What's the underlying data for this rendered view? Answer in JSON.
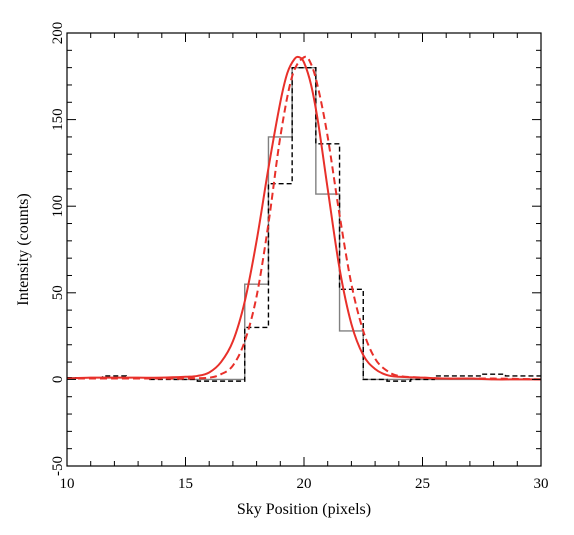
{
  "chart_data": {
    "type": "line",
    "title": "",
    "xlabel": "Sky Position (pixels)",
    "ylabel": "Intensity (counts)",
    "xlim": [
      10,
      30
    ],
    "ylim": [
      -50,
      200
    ],
    "xticks": [
      10,
      15,
      20,
      25,
      30
    ],
    "yticks": [
      -50,
      0,
      50,
      100,
      150,
      200
    ],
    "grid": false,
    "legend": "none",
    "series": [
      {
        "style": "step",
        "color": "#808080",
        "dash": "solid",
        "x": [
          10,
          11.5,
          12.5,
          13.5,
          14.5,
          15.5,
          16.5,
          17.5,
          18.5,
          19.5,
          20.5,
          21.5,
          22.5,
          23.5,
          24.5,
          25.5,
          26.5,
          27.5,
          28.5,
          29.5,
          30
        ],
        "y": [
          1,
          1,
          1,
          1,
          0,
          0,
          0,
          55,
          140,
          180,
          107,
          28,
          0,
          0,
          0,
          0,
          0,
          0,
          0,
          0,
          0
        ]
      },
      {
        "style": "step",
        "color": "#000000",
        "dash": "dashed",
        "x": [
          10,
          11.5,
          12.5,
          13.5,
          14.5,
          15.5,
          16.5,
          17.5,
          18.5,
          19.5,
          20.5,
          21.5,
          22.5,
          23.5,
          24.5,
          25.5,
          26.5,
          27.5,
          28.5,
          29.5,
          30
        ],
        "y": [
          1,
          2,
          1,
          0,
          0,
          -1,
          -1,
          30,
          113,
          180,
          136,
          52,
          0,
          -1,
          0,
          2,
          2,
          3,
          2,
          2,
          0
        ]
      },
      {
        "style": "smooth",
        "color": "#e8302a",
        "dash": "solid",
        "x": [
          10,
          11,
          12,
          13,
          14,
          15,
          15.5,
          16,
          16.5,
          17,
          17.5,
          18,
          18.5,
          19,
          19.3,
          19.6,
          19.8,
          20,
          20.3,
          20.6,
          21,
          21.5,
          22,
          22.5,
          23,
          23.5,
          24,
          25,
          26,
          27,
          28,
          29,
          30
        ],
        "y": [
          0.5,
          1,
          1,
          1,
          1,
          1.5,
          2,
          4,
          10,
          22,
          45,
          80,
          122,
          160,
          177,
          185,
          186,
          183,
          170,
          148,
          110,
          64,
          32,
          14,
          6,
          2.5,
          1.5,
          1,
          0.5,
          0.5,
          0,
          0,
          0
        ]
      },
      {
        "style": "smooth",
        "color": "#e8302a",
        "dash": "dashed",
        "x": [
          10,
          12,
          14,
          15,
          16,
          16.5,
          17,
          17.5,
          18,
          18.5,
          19,
          19.5,
          20,
          20.3,
          20.6,
          21,
          21.5,
          22,
          22.5,
          23,
          23.5,
          24,
          25,
          26,
          28,
          30
        ],
        "y": [
          0.5,
          0.5,
          0.5,
          0.5,
          1,
          3,
          8,
          22,
          48,
          90,
          140,
          175,
          186,
          182,
          168,
          140,
          95,
          55,
          28,
          12,
          5,
          2,
          1,
          0.5,
          0.5,
          0
        ]
      }
    ]
  }
}
